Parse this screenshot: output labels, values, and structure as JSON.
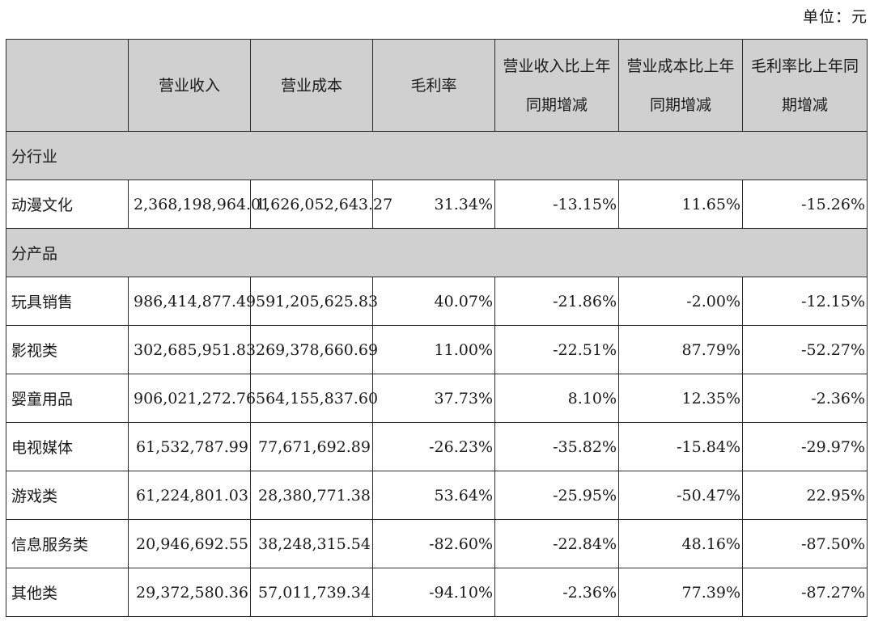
{
  "unit_label": "单位：元",
  "header": {
    "c0": "",
    "c1": "营业收入",
    "c2": "营业成本",
    "c3": "毛利率",
    "c4_l1": "营业收入比上年",
    "c4_l2": "同期增减",
    "c5_l1": "营业成本比上年",
    "c5_l2": "同期增减",
    "c6_l1": "毛利率比上年同",
    "c6_l2": "期增减"
  },
  "sections": [
    {
      "title": "分行业",
      "rows": [
        {
          "label": "动漫文化",
          "revenue": "2,368,198,964.01",
          "cost": "1,626,052,643.27",
          "margin": "31.34%",
          "rev_change": "-13.15%",
          "cost_change": "11.65%",
          "margin_change": "-15.26%"
        }
      ]
    },
    {
      "title": "分产品",
      "rows": [
        {
          "label": "玩具销售",
          "revenue": "986,414,877.49",
          "cost": "591,205,625.83",
          "margin": "40.07%",
          "rev_change": "-21.86%",
          "cost_change": "-2.00%",
          "margin_change": "-12.15%"
        },
        {
          "label": "影视类",
          "revenue": "302,685,951.83",
          "cost": "269,378,660.69",
          "margin": "11.00%",
          "rev_change": "-22.51%",
          "cost_change": "87.79%",
          "margin_change": "-52.27%"
        },
        {
          "label": "婴童用品",
          "revenue": "906,021,272.76",
          "cost": "564,155,837.60",
          "margin": "37.73%",
          "rev_change": "8.10%",
          "cost_change": "12.35%",
          "margin_change": "-2.36%"
        },
        {
          "label": "电视媒体",
          "revenue": "61,532,787.99",
          "cost": "77,671,692.89",
          "margin": "-26.23%",
          "rev_change": "-35.82%",
          "cost_change": "-15.84%",
          "margin_change": "-29.97%"
        },
        {
          "label": "游戏类",
          "revenue": "61,224,801.03",
          "cost": "28,380,771.38",
          "margin": "53.64%",
          "rev_change": "-25.95%",
          "cost_change": "-50.47%",
          "margin_change": "22.95%"
        },
        {
          "label": "信息服务类",
          "revenue": "20,946,692.55",
          "cost": "38,248,315.54",
          "margin": "-82.60%",
          "rev_change": "-22.84%",
          "cost_change": "48.16%",
          "margin_change": "-87.50%"
        },
        {
          "label": "其他类",
          "revenue": "29,372,580.36",
          "cost": "57,011,739.34",
          "margin": "-94.10%",
          "rev_change": "-2.36%",
          "cost_change": "77.39%",
          "margin_change": "-87.27%"
        }
      ]
    }
  ]
}
